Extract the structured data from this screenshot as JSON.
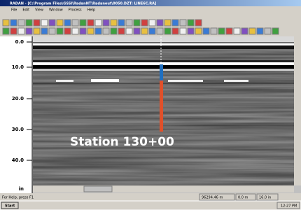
{
  "window": {
    "title": "RADAN - [C:\\Program Files\\GSSI\\RadanNT\\Radanout\\0050.DZT: LINE6C.RA]",
    "menu": [
      "File",
      "Edit",
      "View",
      "Window",
      "Process",
      "Help"
    ]
  },
  "depth_axis": {
    "labels": [
      "0.0",
      "10.0",
      "20.0",
      "30.0",
      "40.0"
    ],
    "unit": "in"
  },
  "annotation": "Station 130+00",
  "status_bar": {
    "help": "For Help, press F1",
    "fields": [
      "96294.46 m",
      "0.0 m",
      "16.0 in"
    ]
  },
  "taskbar": {
    "start": "Start",
    "clock": "12:27 PM"
  }
}
